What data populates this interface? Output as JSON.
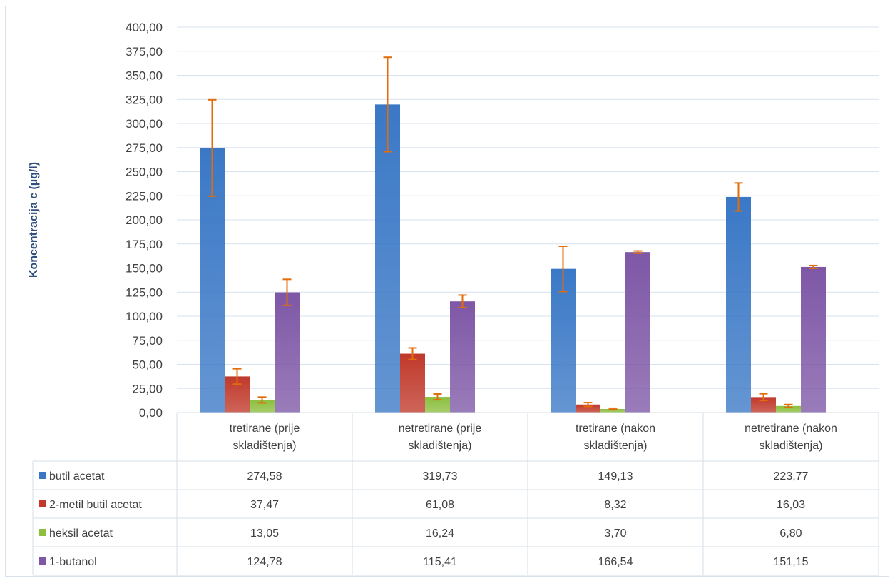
{
  "chart_data": {
    "type": "bar",
    "ylabel": "Koncentracija c (µg/l)",
    "ylim": [
      0,
      400
    ],
    "ytick_step": 25,
    "ytick_labels": [
      "0,00",
      "25,00",
      "50,00",
      "75,00",
      "100,00",
      "125,00",
      "150,00",
      "175,00",
      "200,00",
      "225,00",
      "250,00",
      "275,00",
      "300,00",
      "325,00",
      "350,00",
      "375,00",
      "400,00"
    ],
    "grid": true,
    "categories": [
      [
        "tretirane (prije",
        "skladištenja)"
      ],
      [
        "netretirane (prije",
        "skladištenja)"
      ],
      [
        "tretirane (nakon",
        "skladištenja)"
      ],
      [
        "netretirane (nakon",
        "skladištenja)"
      ]
    ],
    "series": [
      {
        "name": "butil acetat",
        "color": "#3a78c6",
        "values": [
          274.58,
          319.73,
          149.13,
          223.77
        ],
        "labels": [
          "274,58",
          "319,73",
          "149,13",
          "223,77"
        ],
        "errors": [
          50,
          49,
          23.5,
          14.5
        ]
      },
      {
        "name": "2-metil butil acetat",
        "color": "#c0392b",
        "values": [
          37.47,
          61.08,
          8.32,
          16.03
        ],
        "labels": [
          "37,47",
          "61,08",
          "8,32",
          "16,03"
        ],
        "errors": [
          8,
          6,
          2,
          3.5
        ]
      },
      {
        "name": "heksil acetat",
        "color": "#8cbf3f",
        "values": [
          13.05,
          16.24,
          3.7,
          6.8
        ],
        "labels": [
          "13,05",
          "16,24",
          "3,70",
          "6,80"
        ],
        "errors": [
          3,
          3,
          0.8,
          1.5
        ]
      },
      {
        "name": "1-butanol",
        "color": "#7e57a6",
        "values": [
          124.78,
          115.41,
          166.54,
          151.15
        ],
        "labels": [
          "124,78",
          "115,41",
          "166,54",
          "151,15"
        ],
        "errors": [
          13.5,
          6.5,
          1.2,
          1.5
        ]
      }
    ],
    "error_bar_color": "#e36c0a"
  }
}
